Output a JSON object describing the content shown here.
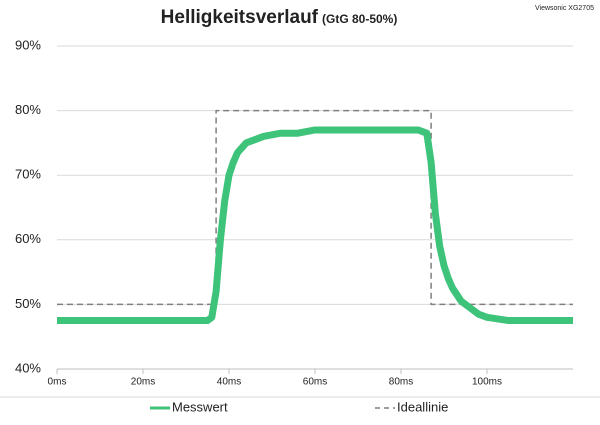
{
  "chart_data": {
    "type": "line",
    "title": "Helligkeitsverlauf",
    "subtitle": "(GtG 80-50%)",
    "annotation": "Viewsonic XG2705",
    "x": [
      0,
      5,
      10,
      15,
      20,
      25,
      30,
      35,
      36,
      37,
      38,
      39,
      40,
      41,
      42,
      44,
      46,
      48,
      52,
      56,
      60,
      65,
      70,
      75,
      80,
      84,
      86,
      87,
      88,
      89,
      90,
      91,
      92,
      94,
      96,
      98,
      100,
      105,
      110,
      115,
      120
    ],
    "series": [
      {
        "name": "Messwert",
        "color": "#3dc37a",
        "values": [
          47.5,
          47.5,
          47.5,
          47.5,
          47.5,
          47.5,
          47.5,
          47.5,
          48,
          52,
          60,
          66,
          70,
          72,
          73.5,
          75,
          75.5,
          76,
          76.5,
          76.5,
          77,
          77,
          77,
          77,
          77,
          77,
          76.5,
          72,
          64,
          59,
          56,
          54,
          52.5,
          50.5,
          49.5,
          48.5,
          48,
          47.5,
          47.5,
          47.5,
          47.5
        ]
      },
      {
        "name": "Ideallinie",
        "color": "#7f7f7f",
        "dashed": true,
        "x": [
          0,
          37,
          37,
          87,
          87,
          120
        ],
        "values": [
          50,
          50,
          80,
          80,
          50,
          50
        ]
      }
    ],
    "xlim": [
      0,
      120
    ],
    "xticks": [
      {
        "value": 0,
        "label": "0ms"
      },
      {
        "value": 20,
        "label": "20ms"
      },
      {
        "value": 40,
        "label": "40ms"
      },
      {
        "value": 60,
        "label": "60ms"
      },
      {
        "value": 80,
        "label": "80ms"
      },
      {
        "value": 100,
        "label": "100ms"
      }
    ],
    "ylim": [
      40,
      90
    ],
    "yticks": [
      {
        "value": 40,
        "label": "40%"
      },
      {
        "value": 50,
        "label": "50%"
      },
      {
        "value": 60,
        "label": "60%"
      },
      {
        "value": 70,
        "label": "70%"
      },
      {
        "value": 80,
        "label": "80%"
      },
      {
        "value": 90,
        "label": "90%"
      }
    ],
    "grid": true,
    "legend": "bottom"
  }
}
